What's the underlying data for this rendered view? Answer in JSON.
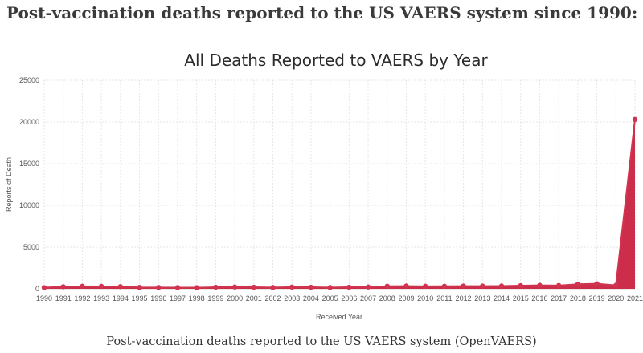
{
  "page": {
    "heading": "Post-vaccination deaths reported to the US VAERS system since 1990:",
    "caption": "Post-vaccination deaths reported to the US VAERS system (OpenVAERS)"
  },
  "colors": {
    "series": "#d0344f",
    "area": "#cc2d4a"
  },
  "chart_data": {
    "type": "area",
    "title": "All Deaths Reported to VAERS by Year",
    "xlabel": "Received Year",
    "ylabel": "Reports of Death",
    "ylim": [
      0,
      25000
    ],
    "yticks": [
      0,
      5000,
      10000,
      15000,
      20000,
      25000
    ],
    "grid": true,
    "x": [
      "1990",
      "1991",
      "1992",
      "1993",
      "1994",
      "1995",
      "1996",
      "1997",
      "1998",
      "1999",
      "2000",
      "2001",
      "2002",
      "2003",
      "2004",
      "2005",
      "2006",
      "2007",
      "2008",
      "2009",
      "2010",
      "2011",
      "2012",
      "2013",
      "2014",
      "2015",
      "2016",
      "2017",
      "2018",
      "2019",
      "2020",
      "2021"
    ],
    "series": [
      {
        "values": [
          140,
          250,
          300,
          290,
          260,
          170,
          160,
          150,
          140,
          190,
          220,
          190,
          160,
          210,
          190,
          160,
          190,
          220,
          310,
          330,
          300,
          310,
          330,
          330,
          340,
          380,
          420,
          400,
          550,
          610,
          420,
          20300
        ]
      }
    ]
  }
}
